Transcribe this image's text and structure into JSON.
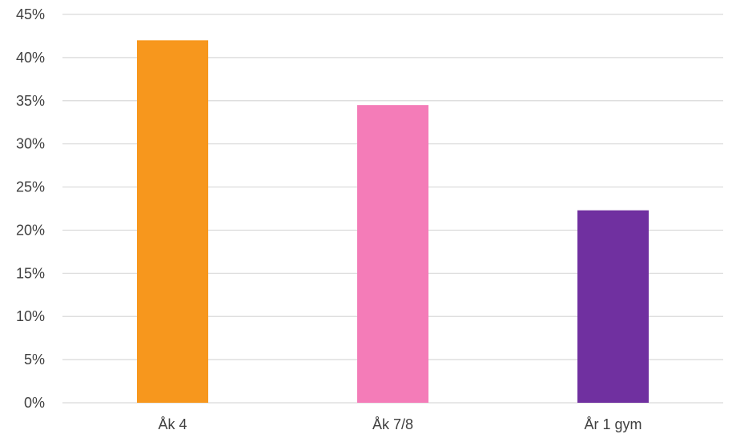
{
  "chart_data": {
    "type": "bar",
    "title": "",
    "xlabel": "",
    "ylabel": "",
    "categories": [
      "Åk 4",
      "Åk 7/8",
      "År 1 gym"
    ],
    "values": [
      42.0,
      34.5,
      22.3
    ],
    "colors": [
      "#F7971D",
      "#F47CB8",
      "#7030A0"
    ],
    "ylim": [
      0,
      45
    ],
    "yticks": [
      0,
      5,
      10,
      15,
      20,
      25,
      30,
      35,
      40,
      45
    ],
    "ytick_labels": [
      "0%",
      "5%",
      "10%",
      "15%",
      "20%",
      "25%",
      "30%",
      "35%",
      "40%",
      "45%"
    ],
    "value_unit": "%",
    "grid": true,
    "legend": "none",
    "gridline_color": "#D9D9D9",
    "axis_text_color": "#404040"
  }
}
